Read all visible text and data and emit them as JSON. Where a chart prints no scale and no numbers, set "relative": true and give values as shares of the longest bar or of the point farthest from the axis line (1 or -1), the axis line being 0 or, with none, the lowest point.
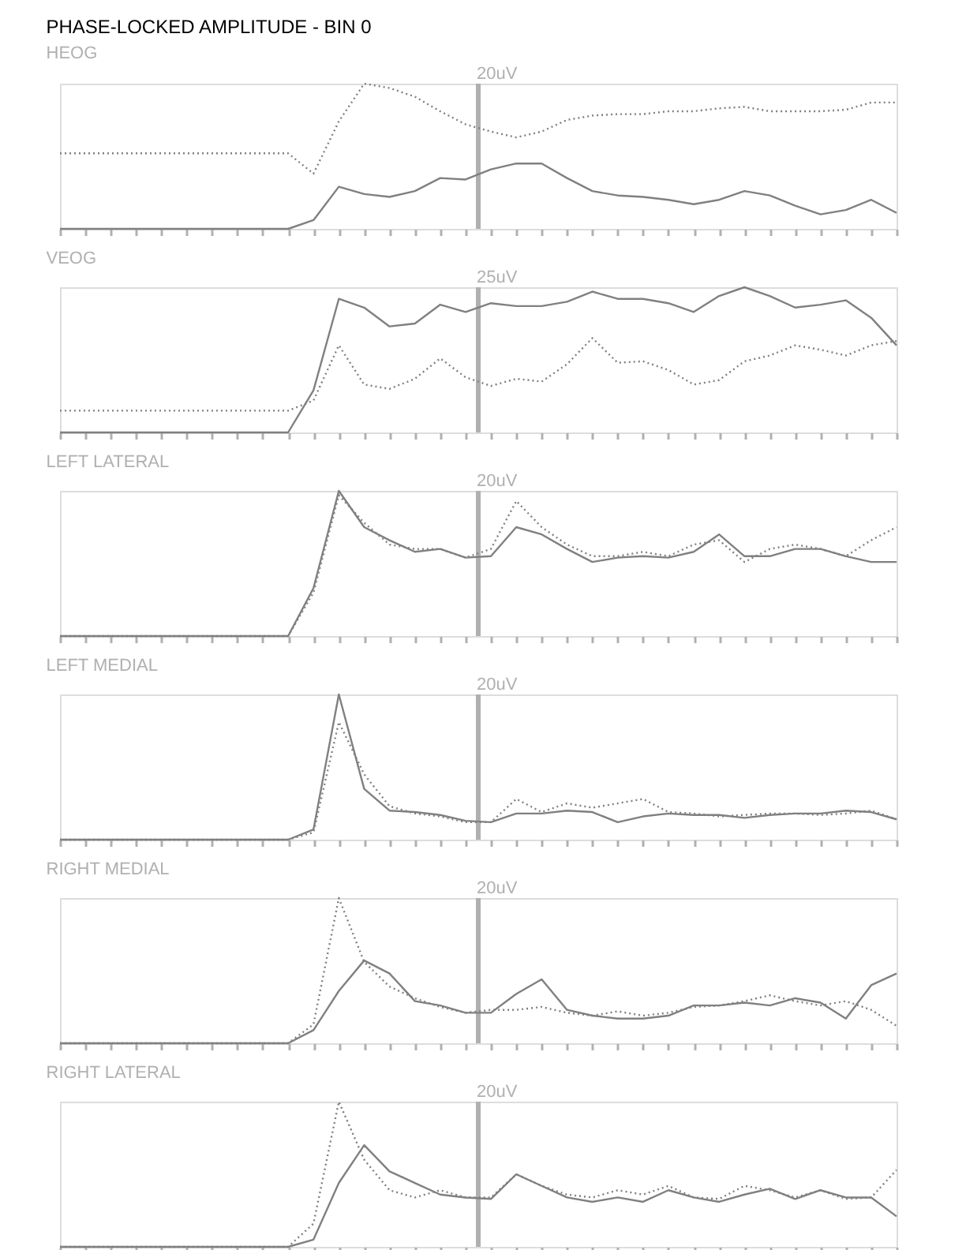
{
  "chart_data": [
    {
      "type": "line",
      "title": "PHASE-LOCKED AMPLITUDE - BIN 0",
      "subtitle": "HEOG",
      "relative": true,
      "grid": false,
      "tick_labels": false,
      "marker": "none",
      "annotations": [
        "20uV"
      ],
      "categories": [
        null,
        null,
        null,
        null,
        null,
        null,
        null,
        null,
        null,
        null,
        null,
        null,
        null,
        null,
        null,
        null,
        null,
        null,
        null,
        null,
        null,
        null,
        null,
        null,
        null,
        null,
        null,
        null,
        null,
        null,
        null,
        null,
        null,
        null
      ],
      "series": [
        {
          "color": "#808080",
          "line_style": "dotted",
          "values": [
            0.52,
            0.52,
            0.52,
            0.52,
            0.52,
            0.52,
            0.52,
            0.52,
            0.52,
            0.52,
            0.38,
            0.74,
            1.0,
            0.97,
            0.91,
            0.81,
            0.72,
            0.67,
            0.63,
            0.67,
            0.75,
            0.78,
            0.79,
            0.79,
            0.81,
            0.81,
            0.83,
            0.84,
            0.81,
            0.81,
            0.81,
            0.82,
            0.87,
            0.87
          ]
        },
        {
          "color": "#808080",
          "line_style": "solid",
          "values": [
            0,
            0,
            0,
            0,
            0,
            0,
            0,
            0,
            0,
            0,
            0.06,
            0.29,
            0.24,
            0.22,
            0.26,
            0.35,
            0.34,
            0.41,
            0.45,
            0.45,
            0.35,
            0.26,
            0.23,
            0.22,
            0.2,
            0.17,
            0.2,
            0.26,
            0.23,
            0.16,
            0.1,
            0.13,
            0.2,
            0.11
          ]
        }
      ]
    },
    {
      "type": "line",
      "title": "VEOG",
      "relative": true,
      "grid": false,
      "tick_labels": false,
      "marker": "none",
      "annotations": [
        "25uV"
      ],
      "categories": [
        null,
        null,
        null,
        null,
        null,
        null,
        null,
        null,
        null,
        null,
        null,
        null,
        null,
        null,
        null,
        null,
        null,
        null,
        null,
        null,
        null,
        null,
        null,
        null,
        null,
        null,
        null,
        null,
        null,
        null,
        null,
        null,
        null,
        null
      ],
      "series": [
        {
          "color": "#808080",
          "line_style": "solid",
          "values": [
            0,
            0,
            0,
            0,
            0,
            0,
            0,
            0,
            0,
            0,
            0.29,
            0.92,
            0.86,
            0.73,
            0.75,
            0.88,
            0.83,
            0.89,
            0.87,
            0.87,
            0.9,
            0.97,
            0.92,
            0.92,
            0.89,
            0.83,
            0.94,
            1.0,
            0.94,
            0.86,
            0.88,
            0.91,
            0.79,
            0.6
          ]
        },
        {
          "color": "#808080",
          "line_style": "dotted",
          "values": [
            0.15,
            0.15,
            0.15,
            0.15,
            0.15,
            0.15,
            0.15,
            0.15,
            0.15,
            0.15,
            0.22,
            0.6,
            0.33,
            0.3,
            0.37,
            0.51,
            0.38,
            0.32,
            0.37,
            0.35,
            0.47,
            0.65,
            0.48,
            0.49,
            0.43,
            0.33,
            0.36,
            0.49,
            0.53,
            0.6,
            0.57,
            0.53,
            0.6,
            0.63
          ]
        }
      ]
    },
    {
      "type": "line",
      "title": "LEFT LATERAL",
      "relative": true,
      "grid": false,
      "tick_labels": false,
      "marker": "none",
      "annotations": [
        "20uV"
      ],
      "categories": [
        null,
        null,
        null,
        null,
        null,
        null,
        null,
        null,
        null,
        null,
        null,
        null,
        null,
        null,
        null,
        null,
        null,
        null,
        null,
        null,
        null,
        null,
        null,
        null,
        null,
        null,
        null,
        null,
        null,
        null,
        null,
        null,
        null,
        null
      ],
      "series": [
        {
          "color": "#808080",
          "line_style": "solid",
          "values": [
            0,
            0,
            0,
            0,
            0,
            0,
            0,
            0,
            0,
            0,
            0.33,
            1.0,
            0.75,
            0.66,
            0.58,
            0.6,
            0.54,
            0.55,
            0.75,
            0.7,
            0.6,
            0.51,
            0.54,
            0.55,
            0.54,
            0.58,
            0.7,
            0.55,
            0.55,
            0.6,
            0.6,
            0.55,
            0.51,
            0.51
          ]
        },
        {
          "color": "#808080",
          "line_style": "dotted",
          "values": [
            0,
            0,
            0,
            0,
            0,
            0,
            0,
            0,
            0,
            0,
            0.3,
            0.97,
            0.78,
            0.63,
            0.6,
            0.6,
            0.54,
            0.6,
            0.93,
            0.75,
            0.63,
            0.55,
            0.55,
            0.58,
            0.55,
            0.63,
            0.66,
            0.51,
            0.6,
            0.63,
            0.6,
            0.55,
            0.66,
            0.75
          ]
        }
      ]
    },
    {
      "type": "line",
      "title": "LEFT MEDIAL",
      "relative": true,
      "grid": false,
      "tick_labels": false,
      "marker": "none",
      "annotations": [
        "20uV"
      ],
      "categories": [
        null,
        null,
        null,
        null,
        null,
        null,
        null,
        null,
        null,
        null,
        null,
        null,
        null,
        null,
        null,
        null,
        null,
        null,
        null,
        null,
        null,
        null,
        null,
        null,
        null,
        null,
        null,
        null,
        null,
        null,
        null,
        null,
        null,
        null
      ],
      "series": [
        {
          "color": "#808080",
          "line_style": "solid",
          "values": [
            0,
            0,
            0,
            0,
            0,
            0,
            0,
            0,
            0,
            0,
            0.07,
            1.0,
            0.35,
            0.2,
            0.19,
            0.17,
            0.13,
            0.12,
            0.18,
            0.18,
            0.2,
            0.19,
            0.12,
            0.16,
            0.18,
            0.17,
            0.17,
            0.15,
            0.17,
            0.18,
            0.18,
            0.2,
            0.19,
            0.14
          ]
        },
        {
          "color": "#808080",
          "line_style": "dotted",
          "values": [
            0,
            0,
            0,
            0,
            0,
            0,
            0,
            0,
            0,
            0,
            0.05,
            0.81,
            0.45,
            0.23,
            0.18,
            0.16,
            0.12,
            0.12,
            0.28,
            0.19,
            0.25,
            0.22,
            0.25,
            0.28,
            0.19,
            0.18,
            0.16,
            0.17,
            0.18,
            0.18,
            0.17,
            0.18,
            0.2,
            0.14
          ]
        }
      ]
    },
    {
      "type": "line",
      "title": "RIGHT MEDIAL",
      "relative": true,
      "grid": false,
      "tick_labels": false,
      "marker": "none",
      "annotations": [
        "20uV"
      ],
      "categories": [
        null,
        null,
        null,
        null,
        null,
        null,
        null,
        null,
        null,
        null,
        null,
        null,
        null,
        null,
        null,
        null,
        null,
        null,
        null,
        null,
        null,
        null,
        null,
        null,
        null,
        null,
        null,
        null,
        null,
        null,
        null,
        null,
        null,
        null
      ],
      "series": [
        {
          "color": "#808080",
          "line_style": "dotted",
          "values": [
            0,
            0,
            0,
            0,
            0,
            0,
            0,
            0,
            0,
            0,
            0.13,
            1.0,
            0.56,
            0.39,
            0.31,
            0.25,
            0.21,
            0.23,
            0.23,
            0.25,
            0.21,
            0.19,
            0.22,
            0.19,
            0.21,
            0.25,
            0.26,
            0.29,
            0.33,
            0.29,
            0.26,
            0.29,
            0.23,
            0.12
          ]
        },
        {
          "color": "#808080",
          "line_style": "solid",
          "values": [
            0,
            0,
            0,
            0,
            0,
            0,
            0,
            0,
            0,
            0,
            0.09,
            0.36,
            0.57,
            0.48,
            0.29,
            0.26,
            0.21,
            0.21,
            0.34,
            0.44,
            0.23,
            0.19,
            0.17,
            0.17,
            0.19,
            0.26,
            0.26,
            0.28,
            0.26,
            0.31,
            0.28,
            0.17,
            0.4,
            0.48
          ]
        }
      ]
    },
    {
      "type": "line",
      "title": "RIGHT LATERAL",
      "relative": true,
      "grid": false,
      "tick_labels": false,
      "marker": "none",
      "annotations": [
        "20uV"
      ],
      "categories": [
        null,
        null,
        null,
        null,
        null,
        null,
        null,
        null,
        null,
        null,
        null,
        null,
        null,
        null,
        null,
        null,
        null,
        null,
        null,
        null,
        null,
        null,
        null,
        null,
        null,
        null,
        null,
        null,
        null,
        null,
        null,
        null,
        null,
        null
      ],
      "series": [
        {
          "color": "#808080",
          "line_style": "dotted",
          "values": [
            0,
            0,
            0,
            0,
            0,
            0,
            0,
            0,
            0,
            0,
            0.16,
            1.0,
            0.6,
            0.39,
            0.34,
            0.39,
            0.34,
            0.34,
            0.5,
            0.42,
            0.36,
            0.34,
            0.39,
            0.36,
            0.42,
            0.34,
            0.33,
            0.42,
            0.39,
            0.34,
            0.39,
            0.33,
            0.34,
            0.53
          ]
        },
        {
          "color": "#808080",
          "line_style": "solid",
          "values": [
            0,
            0,
            0,
            0,
            0,
            0,
            0,
            0,
            0,
            0,
            0.05,
            0.44,
            0.7,
            0.52,
            0.44,
            0.36,
            0.34,
            0.33,
            0.5,
            0.42,
            0.34,
            0.31,
            0.34,
            0.31,
            0.39,
            0.34,
            0.31,
            0.36,
            0.4,
            0.33,
            0.39,
            0.34,
            0.34,
            0.21
          ]
        }
      ]
    }
  ]
}
